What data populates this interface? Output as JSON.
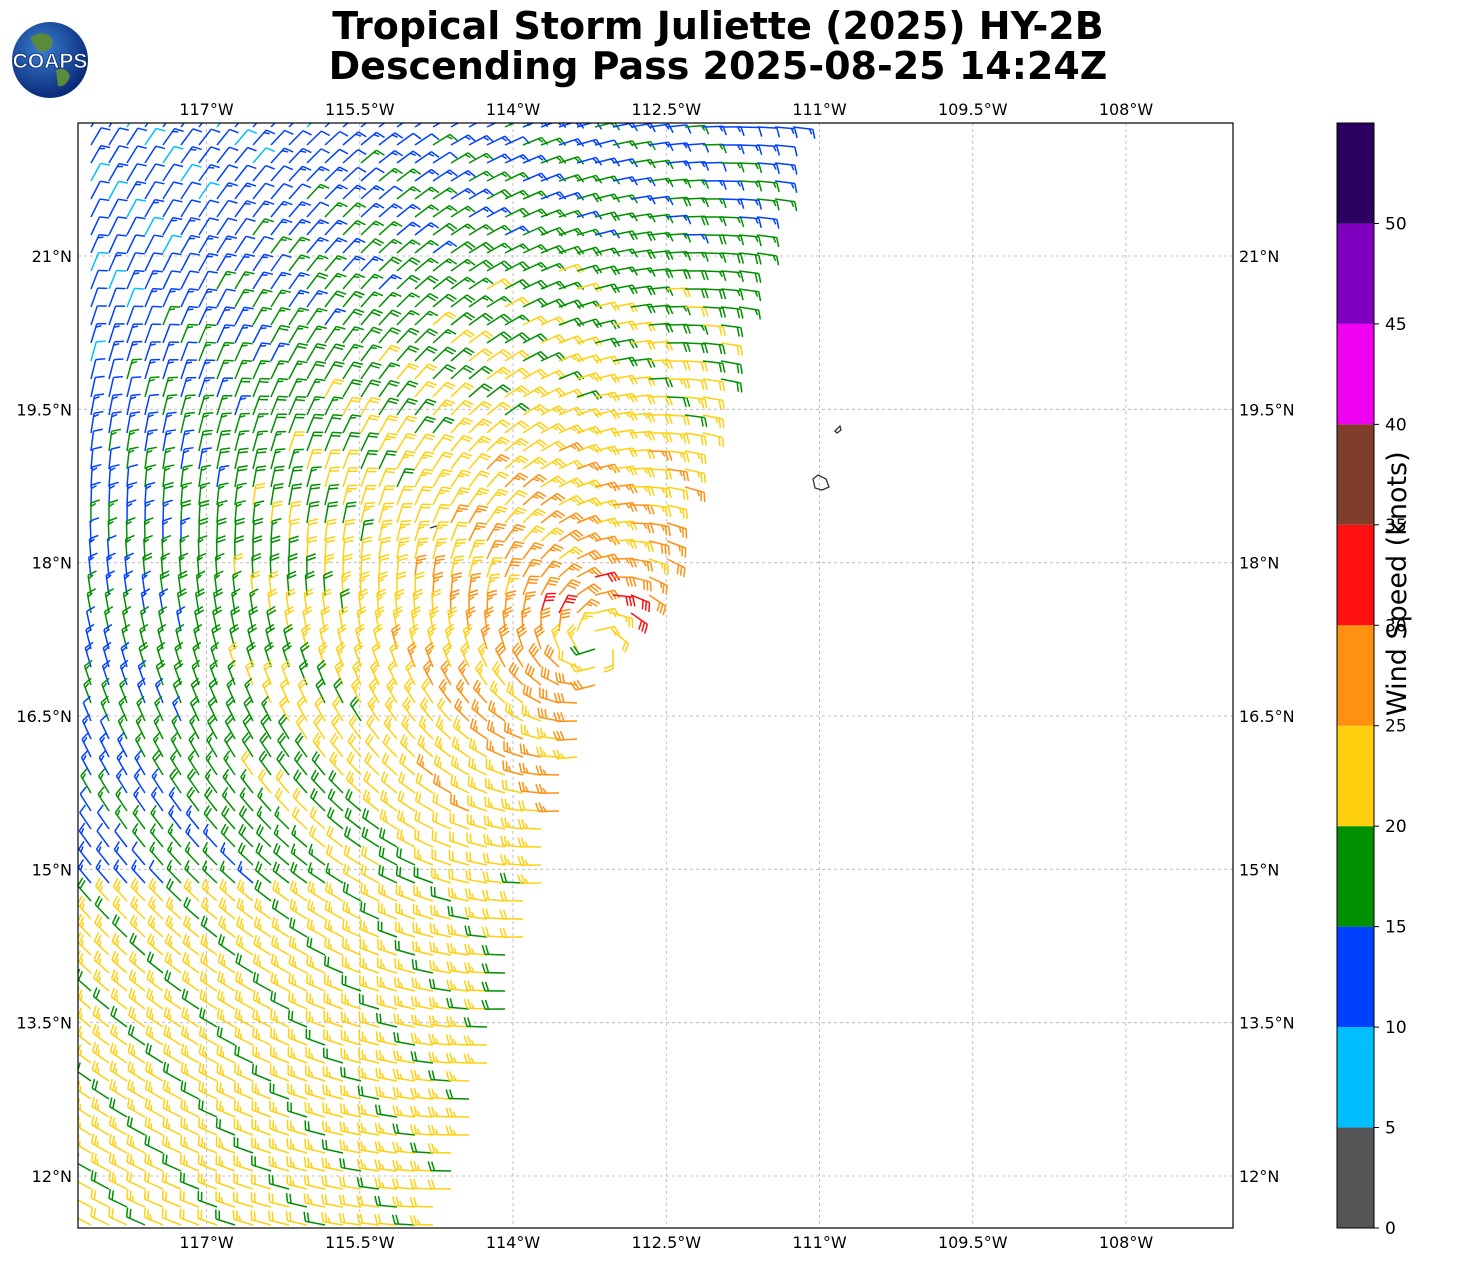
{
  "title": {
    "line1": "Tropical Storm Juliette (2025) HY-2B",
    "line2": "Descending Pass 2025-08-25 14:24Z"
  },
  "logo": {
    "text": "COAPS"
  },
  "map": {
    "lon_range": [
      -118.2,
      -106.9
    ],
    "lat_range": [
      11.5,
      22.3
    ],
    "lon_ticks": [
      {
        "value": -117,
        "label": "117°W"
      },
      {
        "value": -115.5,
        "label": "115.5°W"
      },
      {
        "value": -114,
        "label": "114°W"
      },
      {
        "value": -112.5,
        "label": "112.5°W"
      },
      {
        "value": -111,
        "label": "111°W"
      },
      {
        "value": -109.5,
        "label": "109.5°W"
      },
      {
        "value": -108,
        "label": "108°W"
      }
    ],
    "lat_ticks": [
      {
        "value": 21,
        "label": "21°N"
      },
      {
        "value": 19.5,
        "label": "19.5°N"
      },
      {
        "value": 18,
        "label": "18°N"
      },
      {
        "value": 16.5,
        "label": "16.5°N"
      },
      {
        "value": 15,
        "label": "15°N"
      },
      {
        "value": 13.5,
        "label": "13.5°N"
      },
      {
        "value": 12,
        "label": "12°N"
      }
    ],
    "gridlines": true,
    "storm_center": {
      "lon": -113.2,
      "lat": 17.2
    },
    "swath_east_edge_lon_at_top": -111.2,
    "islands": "Revillagigedo Islands"
  },
  "colorbar": {
    "label": "Wind Speed (knots)",
    "bins": [
      {
        "min": 0,
        "max": 5,
        "color": "#555555"
      },
      {
        "min": 5,
        "max": 10,
        "color": "#00bfff"
      },
      {
        "min": 10,
        "max": 15,
        "color": "#0040ff"
      },
      {
        "min": 15,
        "max": 20,
        "color": "#009000"
      },
      {
        "min": 20,
        "max": 25,
        "color": "#ffd010"
      },
      {
        "min": 25,
        "max": 30,
        "color": "#ff9010"
      },
      {
        "min": 30,
        "max": 35,
        "color": "#ff1010"
      },
      {
        "min": 35,
        "max": 40,
        "color": "#7f3d2a"
      },
      {
        "min": 40,
        "max": 45,
        "color": "#f000f0"
      },
      {
        "min": 45,
        "max": 50,
        "color": "#8000c0"
      },
      {
        "min": 50,
        "max": 55,
        "color": "#2a0060"
      }
    ],
    "tick_labels": [
      "0",
      "5",
      "10",
      "15",
      "20",
      "25",
      "30",
      "35",
      "40",
      "45",
      "50"
    ]
  }
}
